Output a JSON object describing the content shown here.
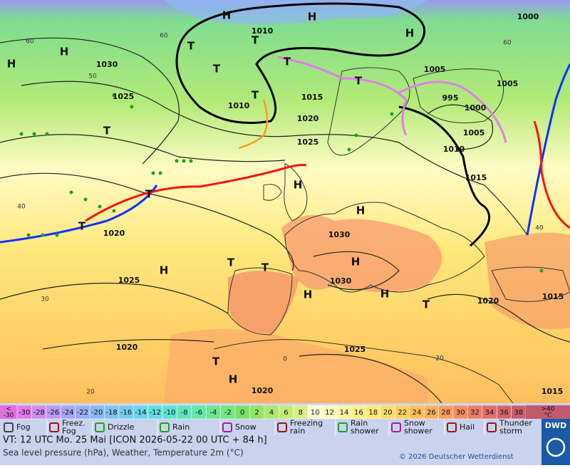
{
  "map": {
    "pressure_labels": [
      1010,
      1030,
      1025,
      1010,
      1015,
      1020,
      1025,
      1005,
      1000,
      1005,
      995,
      1000,
      1005,
      1010,
      1015,
      1020,
      1030,
      1025,
      1030,
      1020,
      1015,
      1020,
      1025,
      1020,
      1015
    ],
    "graticule_labels": [
      60,
      50,
      60,
      60,
      40,
      30,
      20,
      40,
      20,
      0
    ],
    "centers": [
      "H",
      "H",
      "H",
      "H",
      "H",
      "T",
      "T",
      "T",
      "T",
      "T",
      "T",
      "T",
      "H",
      "H",
      "T",
      "T",
      "H",
      "T",
      "T",
      "H",
      "H",
      "H",
      "T",
      "T",
      "H"
    ]
  },
  "colorscale": {
    "low_label": "<\n-30",
    "values": [
      -30,
      -28,
      -26,
      -24,
      -22,
      -20,
      -18,
      -16,
      -14,
      -12,
      -10,
      -8,
      -6,
      -4,
      -2,
      0,
      2,
      4,
      6,
      8,
      10,
      12,
      14,
      16,
      18,
      20,
      22,
      24,
      26,
      28,
      30,
      32,
      34,
      36,
      38
    ],
    "colors": [
      "#e07ae8",
      "#cc8cf0",
      "#bb99f2",
      "#a9a3f5",
      "#9aaef6",
      "#8ab8f7",
      "#7ec3f4",
      "#72cdf0",
      "#69d5ea",
      "#62dde0",
      "#5ee2d0",
      "#5ee6bd",
      "#62e8a8",
      "#6ae891",
      "#74e67c",
      "#7de06a",
      "#93e468",
      "#aae86e",
      "#c2ec7a",
      "#d8f08a",
      "#ffffd8",
      "#fffbbc",
      "#fff6a2",
      "#fff08a",
      "#ffe878",
      "#ffdc6a",
      "#ffcf62",
      "#ffc05c",
      "#ffb05a",
      "#ff9e5c",
      "#f88c62",
      "#ee7c66",
      "#e26e6a",
      "#d4646c",
      "#c85e6e"
    ],
    "high_label": ">40\n°C"
  },
  "legend": [
    "Fog",
    "Freez.\nFog",
    "Drizzle",
    "Rain",
    "Snow",
    "Freezing\nrain",
    "Rain\nshower",
    "Snow\nshower",
    "Hail",
    "Thunder\nstorm"
  ],
  "footer": {
    "valid_time": "VT: 12 UTC Mo.  25 Mai [ICON 2026-05-22  00 UTC + 84 h]",
    "description": "Sea level pressure (hPa), Weather, Temperature 2m (°C)",
    "copyright": "© 2026 Deutscher Wetterdienst",
    "logo": "DWD"
  }
}
